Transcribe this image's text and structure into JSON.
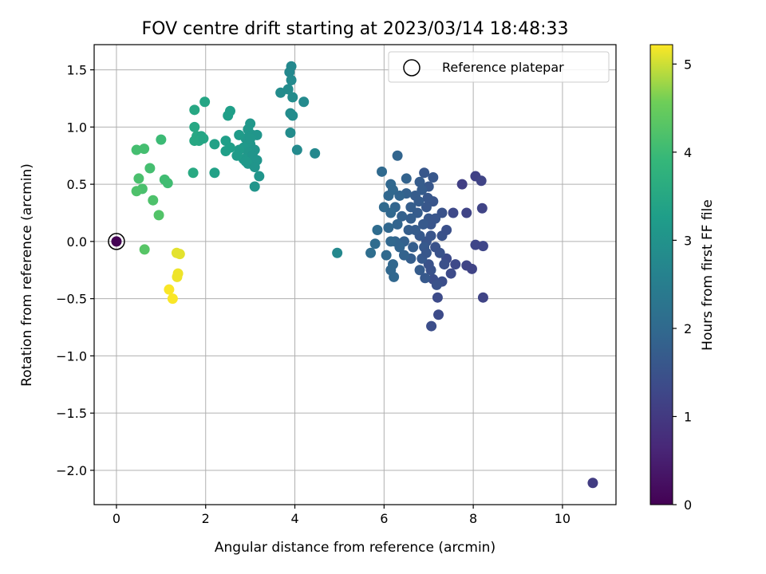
{
  "chart_data": {
    "type": "scatter",
    "title": "FOV centre drift starting at 2023/03/14 18:48:33",
    "xlabel": "Angular distance from reference (arcmin)",
    "ylabel": "Rotation from reference (arcmin)",
    "xlim": [
      -0.5,
      11.2
    ],
    "ylim": [
      -2.3,
      1.72
    ],
    "xticks": [
      0,
      2,
      4,
      6,
      8,
      10
    ],
    "xtick_labels": [
      "0",
      "2",
      "4",
      "6",
      "8",
      "10"
    ],
    "yticks": [
      -2.0,
      -1.5,
      -1.0,
      -0.5,
      0.0,
      0.5,
      1.0,
      1.5
    ],
    "ytick_labels": [
      "−2.0",
      "−1.5",
      "−1.0",
      "−0.5",
      "0.0",
      "0.5",
      "1.0",
      "1.5"
    ],
    "grid": true,
    "legend": {
      "location": "upper right",
      "entries": [
        "Reference platepar"
      ]
    },
    "colorbar": {
      "label": "Hours from first FF file",
      "colormap": "viridis",
      "range": [
        0,
        5.22
      ],
      "ticks": [
        0,
        1,
        2,
        3,
        4,
        5
      ],
      "tick_labels": [
        "0",
        "1",
        "2",
        "3",
        "4",
        "5"
      ]
    },
    "reference_point": {
      "x": 0,
      "y": 0,
      "hours": 0
    },
    "points": [
      {
        "x": 0.0,
        "y": 0.0,
        "h": 0.0
      },
      {
        "x": 10.68,
        "y": -2.11,
        "h": 1.05
      },
      {
        "x": 7.75,
        "y": 0.5,
        "h": 1.1
      },
      {
        "x": 8.05,
        "y": 0.57,
        "h": 1.15
      },
      {
        "x": 8.18,
        "y": 0.53,
        "h": 1.2
      },
      {
        "x": 7.85,
        "y": 0.25,
        "h": 1.2
      },
      {
        "x": 8.2,
        "y": 0.29,
        "h": 1.2
      },
      {
        "x": 8.05,
        "y": -0.03,
        "h": 1.25
      },
      {
        "x": 8.22,
        "y": -0.04,
        "h": 1.25
      },
      {
        "x": 7.85,
        "y": -0.21,
        "h": 1.2
      },
      {
        "x": 7.97,
        "y": -0.24,
        "h": 1.2
      },
      {
        "x": 8.22,
        "y": -0.49,
        "h": 1.2
      },
      {
        "x": 7.55,
        "y": 0.25,
        "h": 1.3
      },
      {
        "x": 7.6,
        "y": -0.2,
        "h": 1.3
      },
      {
        "x": 7.4,
        "y": -0.15,
        "h": 1.35
      },
      {
        "x": 7.5,
        "y": -0.28,
        "h": 1.35
      },
      {
        "x": 7.3,
        "y": -0.35,
        "h": 1.4
      },
      {
        "x": 7.2,
        "y": -0.49,
        "h": 1.35
      },
      {
        "x": 7.22,
        "y": -0.64,
        "h": 1.35
      },
      {
        "x": 7.06,
        "y": -0.74,
        "h": 1.4
      },
      {
        "x": 7.1,
        "y": -0.33,
        "h": 1.4
      },
      {
        "x": 7.15,
        "y": -0.05,
        "h": 1.5
      },
      {
        "x": 7.3,
        "y": 0.05,
        "h": 1.5
      },
      {
        "x": 7.3,
        "y": 0.25,
        "h": 1.5
      },
      {
        "x": 7.4,
        "y": 0.1,
        "h": 1.45
      },
      {
        "x": 7.35,
        "y": -0.2,
        "h": 1.45
      },
      {
        "x": 7.0,
        "y": -0.2,
        "h": 1.5
      },
      {
        "x": 6.95,
        "y": 0.0,
        "h": 1.55
      },
      {
        "x": 7.05,
        "y": 0.15,
        "h": 1.55
      },
      {
        "x": 7.1,
        "y": 0.35,
        "h": 1.55
      },
      {
        "x": 7.0,
        "y": 0.48,
        "h": 1.6
      },
      {
        "x": 6.9,
        "y": 0.6,
        "h": 1.6
      },
      {
        "x": 7.1,
        "y": 0.56,
        "h": 1.6
      },
      {
        "x": 6.95,
        "y": 0.3,
        "h": 1.6
      },
      {
        "x": 7.25,
        "y": -0.1,
        "h": 1.5
      },
      {
        "x": 7.05,
        "y": -0.25,
        "h": 1.5
      },
      {
        "x": 6.85,
        "y": -0.15,
        "h": 1.65
      },
      {
        "x": 6.8,
        "y": 0.05,
        "h": 1.65
      },
      {
        "x": 6.75,
        "y": 0.25,
        "h": 1.7
      },
      {
        "x": 6.7,
        "y": 0.4,
        "h": 1.7
      },
      {
        "x": 6.85,
        "y": 0.45,
        "h": 1.7
      },
      {
        "x": 7.0,
        "y": 0.2,
        "h": 1.6
      },
      {
        "x": 6.9,
        "y": -0.05,
        "h": 1.65
      },
      {
        "x": 7.15,
        "y": 0.2,
        "h": 1.55
      },
      {
        "x": 6.95,
        "y": -0.1,
        "h": 1.6
      },
      {
        "x": 7.05,
        "y": 0.05,
        "h": 1.55
      },
      {
        "x": 6.6,
        "y": 0.3,
        "h": 1.75
      },
      {
        "x": 6.55,
        "y": 0.1,
        "h": 1.75
      },
      {
        "x": 6.65,
        "y": -0.05,
        "h": 1.75
      },
      {
        "x": 6.5,
        "y": 0.42,
        "h": 1.8
      },
      {
        "x": 6.4,
        "y": 0.22,
        "h": 1.8
      },
      {
        "x": 6.45,
        "y": 0.0,
        "h": 1.8
      },
      {
        "x": 6.6,
        "y": -0.15,
        "h": 1.75
      },
      {
        "x": 6.8,
        "y": -0.25,
        "h": 1.7
      },
      {
        "x": 6.92,
        "y": -0.32,
        "h": 1.65
      },
      {
        "x": 7.18,
        "y": -0.38,
        "h": 1.5
      },
      {
        "x": 6.98,
        "y": 0.38,
        "h": 1.6
      },
      {
        "x": 6.88,
        "y": 0.15,
        "h": 1.65
      },
      {
        "x": 6.78,
        "y": 0.35,
        "h": 1.7
      },
      {
        "x": 6.3,
        "y": 0.75,
        "h": 1.9
      },
      {
        "x": 6.15,
        "y": 0.5,
        "h": 1.95
      },
      {
        "x": 6.2,
        "y": 0.45,
        "h": 1.95
      },
      {
        "x": 6.1,
        "y": 0.4,
        "h": 1.95
      },
      {
        "x": 6.25,
        "y": 0.3,
        "h": 1.9
      },
      {
        "x": 6.0,
        "y": 0.3,
        "h": 2.0
      },
      {
        "x": 6.15,
        "y": 0.25,
        "h": 1.95
      },
      {
        "x": 6.3,
        "y": 0.15,
        "h": 1.9
      },
      {
        "x": 6.25,
        "y": 0.0,
        "h": 1.9
      },
      {
        "x": 6.15,
        "y": 0.0,
        "h": 1.95
      },
      {
        "x": 6.05,
        "y": -0.12,
        "h": 2.0
      },
      {
        "x": 6.2,
        "y": -0.2,
        "h": 1.95
      },
      {
        "x": 6.15,
        "y": -0.25,
        "h": 1.95
      },
      {
        "x": 6.22,
        "y": -0.31,
        "h": 1.95
      },
      {
        "x": 5.95,
        "y": 0.61,
        "h": 2.0
      },
      {
        "x": 5.85,
        "y": 0.1,
        "h": 2.05
      },
      {
        "x": 5.8,
        "y": -0.02,
        "h": 2.05
      },
      {
        "x": 5.7,
        "y": -0.1,
        "h": 2.1
      },
      {
        "x": 6.1,
        "y": 0.12,
        "h": 1.95
      },
      {
        "x": 6.35,
        "y": 0.4,
        "h": 1.9
      },
      {
        "x": 6.5,
        "y": 0.55,
        "h": 1.85
      },
      {
        "x": 6.8,
        "y": 0.52,
        "h": 1.7
      },
      {
        "x": 6.7,
        "y": 0.1,
        "h": 1.7
      },
      {
        "x": 6.6,
        "y": 0.2,
        "h": 1.75
      },
      {
        "x": 6.35,
        "y": -0.05,
        "h": 1.9
      },
      {
        "x": 6.45,
        "y": -0.12,
        "h": 1.85
      },
      {
        "x": 4.95,
        "y": -0.1,
        "h": 2.75
      },
      {
        "x": 3.92,
        "y": 1.53,
        "h": 2.75
      },
      {
        "x": 3.88,
        "y": 1.48,
        "h": 2.75
      },
      {
        "x": 3.92,
        "y": 1.41,
        "h": 2.8
      },
      {
        "x": 3.85,
        "y": 1.33,
        "h": 2.85
      },
      {
        "x": 3.68,
        "y": 1.3,
        "h": 2.85
      },
      {
        "x": 3.95,
        "y": 1.26,
        "h": 2.85
      },
      {
        "x": 4.2,
        "y": 1.22,
        "h": 2.8
      },
      {
        "x": 3.9,
        "y": 1.12,
        "h": 2.85
      },
      {
        "x": 3.95,
        "y": 1.1,
        "h": 2.85
      },
      {
        "x": 3.9,
        "y": 0.95,
        "h": 2.85
      },
      {
        "x": 4.05,
        "y": 0.8,
        "h": 2.8
      },
      {
        "x": 4.45,
        "y": 0.77,
        "h": 2.75
      },
      {
        "x": 3.0,
        "y": 1.03,
        "h": 3.1
      },
      {
        "x": 2.95,
        "y": 0.98,
        "h": 3.1
      },
      {
        "x": 3.05,
        "y": 0.93,
        "h": 3.1
      },
      {
        "x": 3.15,
        "y": 0.93,
        "h": 3.05
      },
      {
        "x": 2.9,
        "y": 0.9,
        "h": 3.1
      },
      {
        "x": 3.0,
        "y": 0.85,
        "h": 3.1
      },
      {
        "x": 2.85,
        "y": 0.82,
        "h": 3.15
      },
      {
        "x": 3.1,
        "y": 0.8,
        "h": 3.05
      },
      {
        "x": 2.95,
        "y": 0.78,
        "h": 3.1
      },
      {
        "x": 3.05,
        "y": 0.75,
        "h": 3.05
      },
      {
        "x": 2.85,
        "y": 0.72,
        "h": 3.15
      },
      {
        "x": 3.15,
        "y": 0.71,
        "h": 3.05
      },
      {
        "x": 2.95,
        "y": 0.68,
        "h": 3.1
      },
      {
        "x": 3.1,
        "y": 0.65,
        "h": 3.05
      },
      {
        "x": 3.2,
        "y": 0.57,
        "h": 3.05
      },
      {
        "x": 3.1,
        "y": 0.48,
        "h": 3.05
      },
      {
        "x": 2.75,
        "y": 0.93,
        "h": 3.2
      },
      {
        "x": 2.75,
        "y": 0.8,
        "h": 3.2
      },
      {
        "x": 2.7,
        "y": 0.75,
        "h": 3.2
      },
      {
        "x": 3.0,
        "y": 0.9,
        "h": 3.1
      },
      {
        "x": 2.9,
        "y": 0.7,
        "h": 3.15
      },
      {
        "x": 2.55,
        "y": 1.14,
        "h": 3.3
      },
      {
        "x": 2.5,
        "y": 1.1,
        "h": 3.3
      },
      {
        "x": 2.45,
        "y": 0.88,
        "h": 3.3
      },
      {
        "x": 2.55,
        "y": 0.82,
        "h": 3.3
      },
      {
        "x": 2.45,
        "y": 0.79,
        "h": 3.3
      },
      {
        "x": 2.2,
        "y": 0.85,
        "h": 3.35
      },
      {
        "x": 2.2,
        "y": 0.6,
        "h": 3.35
      },
      {
        "x": 1.98,
        "y": 1.22,
        "h": 3.45
      },
      {
        "x": 1.75,
        "y": 1.15,
        "h": 3.5
      },
      {
        "x": 1.75,
        "y": 1.0,
        "h": 3.5
      },
      {
        "x": 1.8,
        "y": 0.92,
        "h": 3.5
      },
      {
        "x": 1.9,
        "y": 0.92,
        "h": 3.45
      },
      {
        "x": 1.75,
        "y": 0.88,
        "h": 3.5
      },
      {
        "x": 1.85,
        "y": 0.88,
        "h": 3.5
      },
      {
        "x": 1.95,
        "y": 0.9,
        "h": 3.45
      },
      {
        "x": 1.72,
        "y": 0.6,
        "h": 3.55
      },
      {
        "x": 1.0,
        "y": 0.89,
        "h": 4.0
      },
      {
        "x": 0.45,
        "y": 0.8,
        "h": 4.1
      },
      {
        "x": 0.62,
        "y": 0.81,
        "h": 4.1
      },
      {
        "x": 0.75,
        "y": 0.64,
        "h": 4.1
      },
      {
        "x": 0.5,
        "y": 0.55,
        "h": 4.15
      },
      {
        "x": 1.08,
        "y": 0.54,
        "h": 4.05
      },
      {
        "x": 1.15,
        "y": 0.51,
        "h": 4.05
      },
      {
        "x": 0.58,
        "y": 0.46,
        "h": 4.15
      },
      {
        "x": 0.45,
        "y": 0.44,
        "h": 4.2
      },
      {
        "x": 0.82,
        "y": 0.36,
        "h": 4.2
      },
      {
        "x": 0.95,
        "y": 0.23,
        "h": 4.25
      },
      {
        "x": 0.63,
        "y": -0.07,
        "h": 4.3
      },
      {
        "x": 1.35,
        "y": -0.1,
        "h": 5.1
      },
      {
        "x": 1.42,
        "y": -0.11,
        "h": 5.1
      },
      {
        "x": 1.38,
        "y": -0.28,
        "h": 5.15
      },
      {
        "x": 1.36,
        "y": -0.31,
        "h": 5.15
      },
      {
        "x": 1.18,
        "y": -0.42,
        "h": 5.2
      },
      {
        "x": 1.26,
        "y": -0.5,
        "h": 5.2
      }
    ]
  }
}
